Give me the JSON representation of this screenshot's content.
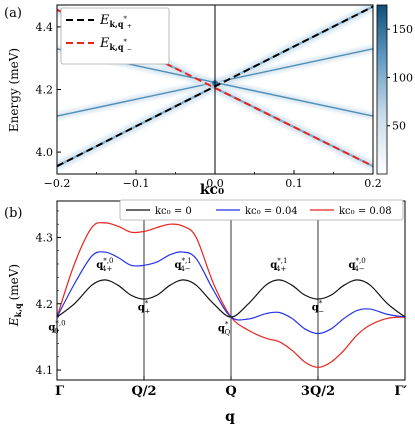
{
  "chart_data": [
    {
      "panel_label": "(a)",
      "type": "heatmap",
      "xlabel": "kc₀",
      "ylabel": "Energy (meV)",
      "xlim": [
        -0.2,
        0.2
      ],
      "ylim": [
        3.93,
        4.47
      ],
      "xticks": [
        "−0.2",
        "−0.1",
        "0.0",
        "0.1",
        "0.2"
      ],
      "xtick_values": [
        -0.2,
        -0.1,
        0.0,
        0.1,
        0.2
      ],
      "yticks": [
        "4.0",
        "4.2",
        "4.4"
      ],
      "ytick_values": [
        4.0,
        4.2,
        4.4
      ],
      "colorbar_ticks": [
        "50",
        "100",
        "150"
      ],
      "colorbar_tick_values": [
        50,
        100,
        150
      ],
      "colorbar_range": [
        0,
        175
      ],
      "vertical_line_x": 0.0,
      "legend_position": "top-left",
      "legend": [
        {
          "label": "E",
          "sub": "k,q",
          "sup": "*",
          "subsub": "+",
          "color": "#000000"
        },
        {
          "label": "E",
          "sub": "k,q",
          "sup": "*",
          "subsub": "−",
          "color": "#e8241f"
        }
      ],
      "series": [
        {
          "style": "dashed",
          "color": "#000000",
          "x": [
            -0.2,
            0.2
          ],
          "y": [
            3.955,
            4.465
          ]
        },
        {
          "style": "dashed",
          "color": "#e8241f",
          "x": [
            -0.2,
            0.2
          ],
          "y": [
            4.455,
            3.955
          ]
        }
      ],
      "bands": [
        {
          "x": [
            -0.2,
            0.2
          ],
          "y": [
            3.955,
            4.465
          ]
        },
        {
          "x": [
            -0.2,
            0.2
          ],
          "y": [
            4.455,
            3.955
          ]
        },
        {
          "x": [
            -0.2,
            0.2
          ],
          "y": [
            4.115,
            4.33
          ]
        },
        {
          "x": [
            -0.2,
            0.2
          ],
          "y": [
            4.33,
            4.115
          ]
        }
      ]
    },
    {
      "panel_label": "(b)",
      "type": "line",
      "ylabel": "E",
      "ylabel_sub": "k,q",
      "ylabel_unit": "(meV)",
      "xlabel": "q",
      "ylim": [
        4.085,
        4.355
      ],
      "yticks": [
        "4.1",
        "4.2",
        "4.3"
      ],
      "ytick_values": [
        4.1,
        4.2,
        4.3
      ],
      "xticks": [
        "Γ",
        "Q/2",
        "Q",
        "3Q/2",
        "Γ′"
      ],
      "xtick_values": [
        0,
        1,
        2,
        3,
        4
      ],
      "vertical_lines": [
        1,
        2,
        3
      ],
      "legend_position": "top",
      "legend": [
        {
          "label": "kc₀ = 0",
          "color": "#111111"
        },
        {
          "label": "kc₀ = 0.04",
          "color": "#2433e8"
        },
        {
          "label": "kc₀ = 0.08",
          "color": "#e8241f"
        }
      ],
      "series": [
        {
          "name": "kc₀ = 0",
          "color": "#111111",
          "x": [
            0,
            0.2,
            0.4,
            0.55,
            0.7,
            0.85,
            1.0,
            1.15,
            1.3,
            1.45,
            1.6,
            1.8,
            2.0,
            2.2,
            2.4,
            2.55,
            2.7,
            2.85,
            3.0,
            3.15,
            3.3,
            3.45,
            3.6,
            3.8,
            4.0
          ],
          "y": [
            4.18,
            4.2,
            4.228,
            4.236,
            4.228,
            4.213,
            4.207,
            4.213,
            4.228,
            4.236,
            4.228,
            4.2,
            4.18,
            4.2,
            4.228,
            4.236,
            4.228,
            4.213,
            4.207,
            4.213,
            4.228,
            4.236,
            4.228,
            4.2,
            4.18
          ]
        },
        {
          "name": "kc₀ = 0.04",
          "color": "#2433e8",
          "x": [
            0,
            0.2,
            0.4,
            0.55,
            0.7,
            0.85,
            1.0,
            1.15,
            1.3,
            1.45,
            1.6,
            1.8,
            2.0,
            2.2,
            2.4,
            2.55,
            2.7,
            2.85,
            3.0,
            3.15,
            3.3,
            3.45,
            3.6,
            3.8,
            4.0
          ],
          "y": [
            4.18,
            4.23,
            4.272,
            4.278,
            4.27,
            4.258,
            4.258,
            4.263,
            4.274,
            4.278,
            4.268,
            4.22,
            4.18,
            4.177,
            4.185,
            4.187,
            4.178,
            4.162,
            4.155,
            4.162,
            4.178,
            4.19,
            4.192,
            4.184,
            4.18
          ]
        },
        {
          "name": "kc₀ = 0.08",
          "color": "#e8241f",
          "x": [
            0,
            0.2,
            0.4,
            0.55,
            0.7,
            0.85,
            1.0,
            1.15,
            1.3,
            1.45,
            1.6,
            1.8,
            2.0,
            2.2,
            2.4,
            2.55,
            2.7,
            2.85,
            3.0,
            3.15,
            3.3,
            3.45,
            3.6,
            3.8,
            4.0
          ],
          "y": [
            4.18,
            4.26,
            4.315,
            4.322,
            4.317,
            4.308,
            4.309,
            4.315,
            4.32,
            4.317,
            4.3,
            4.23,
            4.18,
            4.16,
            4.148,
            4.143,
            4.13,
            4.112,
            4.104,
            4.112,
            4.13,
            4.153,
            4.168,
            4.178,
            4.18
          ]
        }
      ],
      "annotations": [
        {
          "base": "q",
          "sup": "*,0",
          "sub": "0",
          "x": 0.0,
          "y": 4.16
        },
        {
          "base": "q",
          "sup": "*,0",
          "sub": "4+",
          "x": 0.55,
          "y": 4.254
        },
        {
          "base": "q",
          "sup": "*",
          "sub": "+",
          "x": 1.0,
          "y": 4.19
        },
        {
          "base": "q",
          "sup": "*,1",
          "sub": "4−",
          "x": 1.45,
          "y": 4.254
        },
        {
          "base": "q",
          "sup": "*",
          "sub": "Q",
          "x": 1.92,
          "y": 4.158
        },
        {
          "base": "q",
          "sup": "*,1",
          "sub": "4+",
          "x": 2.55,
          "y": 4.254
        },
        {
          "base": "q",
          "sup": "*",
          "sub": "−",
          "x": 3.0,
          "y": 4.19
        },
        {
          "base": "q",
          "sup": "*,0",
          "sub": "4−",
          "x": 3.45,
          "y": 4.254
        }
      ]
    }
  ]
}
